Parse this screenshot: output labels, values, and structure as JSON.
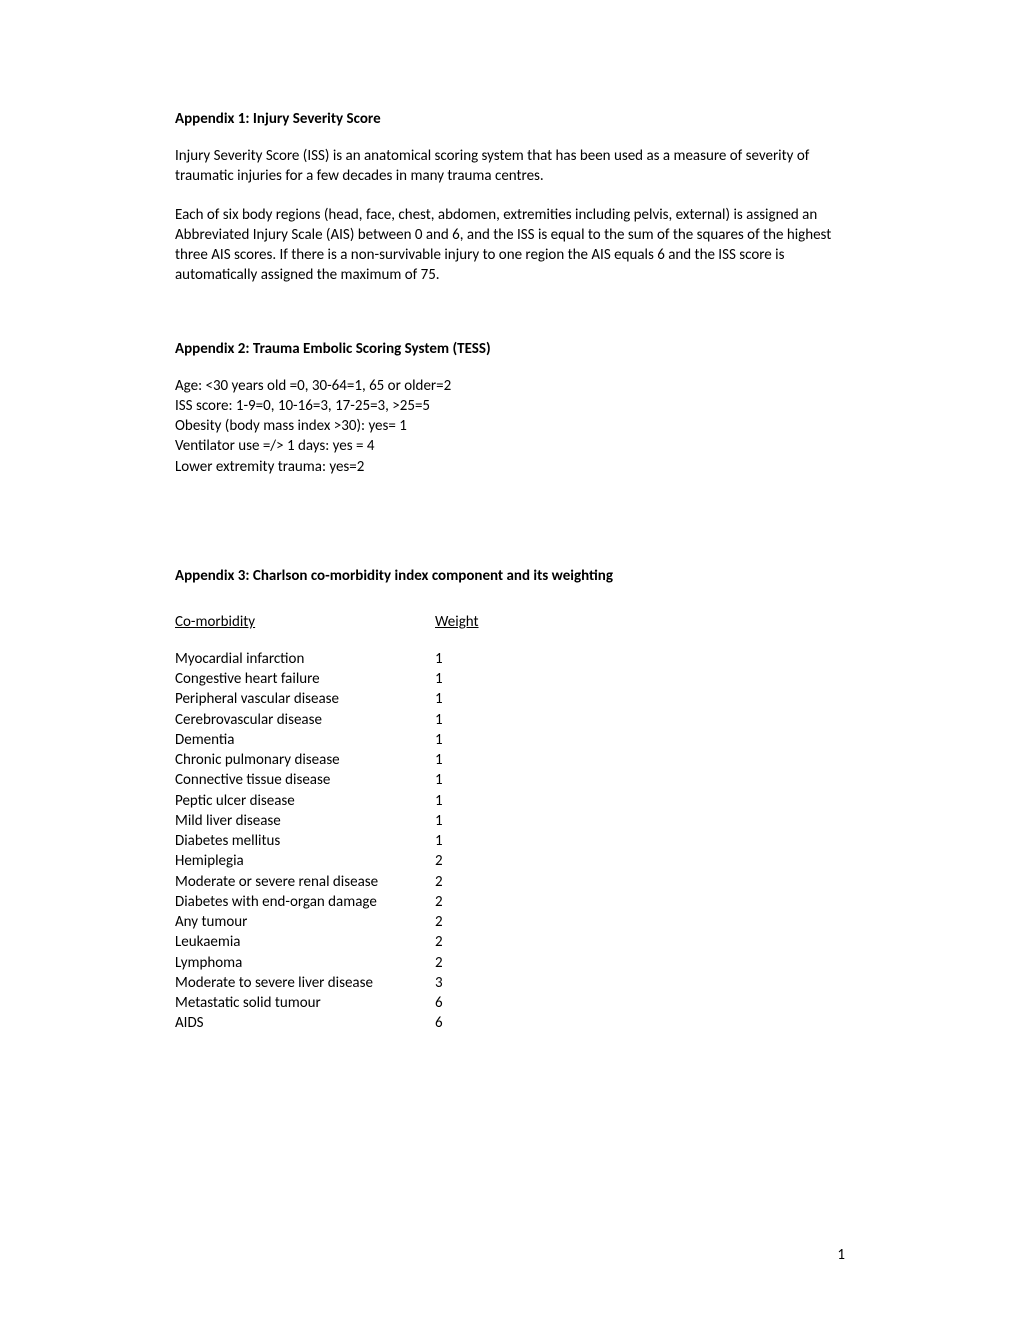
{
  "appendix1": {
    "title": "Appendix 1: Injury Severity Score",
    "para1": "Injury Severity Score (ISS) is an anatomical scoring system that has been used as a measure of severity of traumatic injuries for a few decades in many trauma centres.",
    "para2": "Each of six body regions (head, face, chest, abdomen, extremities including pelvis, external) is assigned an Abbreviated Injury Scale (AIS) between 0 and 6, and the ISS is equal to the sum of the squares of the highest three AIS scores. If there is a non-survivable injury to one region the AIS equals 6 and the ISS score is automatically assigned the maximum of 75."
  },
  "appendix2": {
    "title": "Appendix 2: Trauma Embolic Scoring System (TESS)",
    "lines": [
      "Age: <30 years old =0, 30-64=1, 65 or older=2",
      "ISS score: 1-9=0, 10-16=3, 17-25=3, >25=5",
      "Obesity (body mass index >30): yes= 1",
      "Ventilator use =/> 1 days: yes = 4",
      "Lower extremity trauma: yes=2"
    ]
  },
  "appendix3": {
    "title": "Appendix 3: Charlson co-morbidity index component and its weighting",
    "header_col1": "Co-morbidity",
    "header_col2": "Weight",
    "rows": [
      {
        "name": "Myocardial infarction",
        "weight": "1"
      },
      {
        "name": "Congestive heart failure",
        "weight": "1"
      },
      {
        "name": "Peripheral vascular disease",
        "weight": "1"
      },
      {
        "name": "Cerebrovascular disease",
        "weight": "1"
      },
      {
        "name": "Dementia",
        "weight": "1"
      },
      {
        "name": "Chronic pulmonary disease",
        "weight": "1"
      },
      {
        "name": "Connective tissue disease",
        "weight": "1"
      },
      {
        "name": "Peptic ulcer disease",
        "weight": "1"
      },
      {
        "name": "Mild liver disease",
        "weight": "1"
      },
      {
        "name": "Diabetes mellitus",
        "weight": "1"
      },
      {
        "name": "Hemiplegia",
        "weight": "2"
      },
      {
        "name": "Moderate or severe renal disease",
        "weight": "2"
      },
      {
        "name": "Diabetes with end-organ damage",
        "weight": "2"
      },
      {
        "name": "Any tumour",
        "weight": "2"
      },
      {
        "name": "Leukaemia",
        "weight": "2"
      },
      {
        "name": "Lymphoma",
        "weight": "2"
      },
      {
        "name": "Moderate to severe liver disease",
        "weight": "3"
      },
      {
        "name": "Metastatic solid tumour",
        "weight": "6"
      },
      {
        "name": "AIDS",
        "weight": "6"
      }
    ]
  },
  "page_number": "1"
}
